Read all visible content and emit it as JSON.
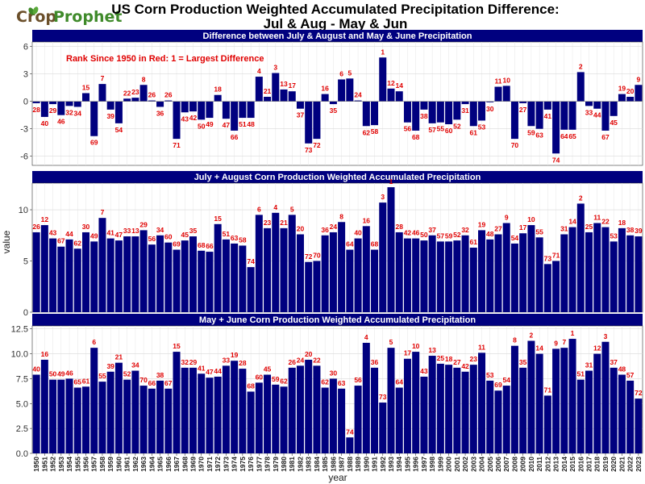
{
  "logo": {
    "part1": "Crop",
    "part2": "Prophet"
  },
  "title_line1": "US Corn Production Weighted Accumulated Precipitation Difference:",
  "title_line2": "Jul & Aug - May & Jun",
  "xlabel": "year",
  "ylabel": "value",
  "annotation": "Rank Since 1950 in Red:   1 = Largest Difference",
  "colors": {
    "bar": "#00007f",
    "rank": "#e00000",
    "strip": "#00007f",
    "panel_bg": "#ffffff",
    "grid": "#e6e6e6"
  },
  "chart_data": [
    {
      "type": "bar",
      "title": "Difference between July & August and May & June Precipitation",
      "ylim": [
        -7,
        6.5
      ],
      "yticks": [
        -6,
        -3,
        0,
        3,
        6
      ],
      "x": [
        1950,
        1951,
        1952,
        1953,
        1954,
        1955,
        1956,
        1957,
        1958,
        1959,
        1960,
        1961,
        1962,
        1963,
        1964,
        1965,
        1966,
        1967,
        1968,
        1969,
        1970,
        1971,
        1972,
        1973,
        1974,
        1975,
        1976,
        1977,
        1978,
        1979,
        1980,
        1981,
        1982,
        1983,
        1984,
        1985,
        1986,
        1987,
        1988,
        1989,
        1990,
        1991,
        1992,
        1993,
        1994,
        1995,
        1996,
        1997,
        1998,
        1999,
        2000,
        2001,
        2002,
        2003,
        2004,
        2005,
        2006,
        2007,
        2008,
        2009,
        2010,
        2011,
        2012,
        2013,
        2014,
        2015,
        2016,
        2017,
        2018,
        2019,
        2020,
        2021,
        2022,
        2023
      ],
      "values": [
        -0.2,
        -1.7,
        -0.3,
        -1.5,
        -0.5,
        -0.6,
        0.9,
        -3.8,
        1.9,
        -0.9,
        -2.4,
        0.3,
        0.4,
        1.8,
        0.1,
        -0.6,
        0.1,
        -4.1,
        -1.2,
        -1.1,
        -2.0,
        -1.8,
        0.7,
        -1.9,
        -3.2,
        -1.8,
        -1.8,
        2.7,
        0.5,
        3.1,
        1.3,
        1.1,
        -0.8,
        -4.6,
        -4.1,
        0.8,
        -0.3,
        2.4,
        2.5,
        0.1,
        -2.7,
        -2.6,
        4.8,
        1.4,
        1.1,
        -2.3,
        -3.2,
        -0.9,
        -2.4,
        -2.3,
        -2.5,
        -2.0,
        -0.3,
        -2.7,
        -2.1,
        -0.1,
        1.6,
        1.7,
        -4.1,
        -0.2,
        -2.7,
        -3.0,
        -0.9,
        -5.7,
        -3.1,
        -3.1,
        3.2,
        -0.5,
        -0.8,
        -3.2,
        -1.6,
        0.8,
        0.5,
        1.8
      ],
      "ranks": [
        28,
        40,
        29,
        46,
        32,
        34,
        15,
        69,
        7,
        39,
        54,
        22,
        23,
        8,
        26,
        36,
        26,
        71,
        43,
        42,
        50,
        49,
        18,
        47,
        66,
        51,
        48,
        4,
        21,
        3,
        13,
        17,
        37,
        73,
        72,
        16,
        35,
        6,
        5,
        24,
        62,
        58,
        1,
        12,
        14,
        56,
        68,
        38,
        57,
        55,
        60,
        52,
        31,
        61,
        53,
        30,
        11,
        10,
        70,
        27,
        59,
        63,
        41,
        74,
        64,
        65,
        2,
        33,
        44,
        67,
        45,
        19,
        20,
        9
      ]
    },
    {
      "type": "bar",
      "title": "July + August Corn Production Weighted Accumulated Precipitation",
      "ylim": [
        0,
        12.6
      ],
      "yticks": [
        0,
        5,
        10
      ],
      "x": [
        1950,
        1951,
        1952,
        1953,
        1954,
        1955,
        1956,
        1957,
        1958,
        1959,
        1960,
        1961,
        1962,
        1963,
        1964,
        1965,
        1966,
        1967,
        1968,
        1969,
        1970,
        1971,
        1972,
        1973,
        1974,
        1975,
        1976,
        1977,
        1978,
        1979,
        1980,
        1981,
        1982,
        1983,
        1984,
        1985,
        1986,
        1987,
        1988,
        1989,
        1990,
        1991,
        1992,
        1993,
        1994,
        1995,
        1996,
        1997,
        1998,
        1999,
        2000,
        2001,
        2002,
        2003,
        2004,
        2005,
        2006,
        2007,
        2008,
        2009,
        2010,
        2011,
        2012,
        2013,
        2014,
        2015,
        2016,
        2017,
        2018,
        2019,
        2020,
        2021,
        2022,
        2023
      ],
      "values": [
        7.8,
        8.5,
        7.2,
        6.4,
        7.1,
        6.2,
        7.8,
        6.9,
        9.2,
        7.2,
        7.0,
        7.4,
        7.4,
        8.0,
        6.6,
        7.5,
        6.8,
        6.1,
        7.0,
        7.4,
        6.0,
        5.9,
        8.6,
        7.1,
        6.7,
        6.5,
        4.4,
        9.5,
        8.2,
        9.7,
        8.2,
        9.5,
        7.6,
        4.9,
        5.0,
        7.5,
        7.8,
        8.8,
        6.1,
        7.2,
        8.4,
        6.1,
        10.7,
        12.2,
        7.8,
        7.2,
        7.2,
        7.0,
        7.5,
        6.9,
        6.9,
        7.0,
        7.5,
        6.3,
        8.0,
        7.1,
        7.6,
        8.7,
        6.7,
        7.7,
        8.5,
        7.3,
        4.7,
        5.0,
        7.6,
        8.3,
        10.6,
        7.8,
        8.7,
        8.3,
        6.9,
        8.2,
        7.5,
        7.4
      ],
      "ranks": [
        26,
        12,
        43,
        67,
        44,
        62,
        30,
        49,
        7,
        41,
        47,
        33,
        13,
        29,
        56,
        34,
        60,
        69,
        45,
        35,
        68,
        66,
        15,
        51,
        63,
        58,
        74,
        6,
        23,
        4,
        21,
        5,
        20,
        72,
        70,
        36,
        24,
        8,
        64,
        40,
        16,
        68,
        3,
        1,
        28,
        42,
        46,
        50,
        37,
        57,
        59,
        52,
        32,
        61,
        19,
        48,
        27,
        9,
        54,
        17,
        10,
        55,
        73,
        71,
        31,
        14,
        2,
        25,
        11,
        22,
        53,
        18,
        38,
        39
      ]
    },
    {
      "type": "bar",
      "title": "May + June Corn Production Weighted Accumulated Precipitation",
      "ylim": [
        0,
        12.8
      ],
      "yticks": [
        0.0,
        2.5,
        5.0,
        7.5,
        10.0,
        12.5
      ],
      "x": [
        1950,
        1951,
        1952,
        1953,
        1954,
        1955,
        1956,
        1957,
        1958,
        1959,
        1960,
        1961,
        1962,
        1963,
        1964,
        1965,
        1966,
        1967,
        1968,
        1969,
        1970,
        1971,
        1972,
        1973,
        1974,
        1975,
        1976,
        1977,
        1978,
        1979,
        1980,
        1981,
        1982,
        1983,
        1984,
        1985,
        1986,
        1987,
        1988,
        1989,
        1990,
        1991,
        1992,
        1993,
        1994,
        1995,
        1996,
        1997,
        1998,
        1999,
        2000,
        2001,
        2002,
        2003,
        2004,
        2005,
        2006,
        2007,
        2008,
        2009,
        2010,
        2011,
        2012,
        2013,
        2014,
        2015,
        2016,
        2017,
        2018,
        2019,
        2020,
        2021,
        2022,
        2023
      ],
      "values": [
        7.9,
        9.4,
        7.4,
        7.4,
        7.5,
        6.6,
        6.7,
        10.6,
        7.2,
        8.2,
        9.1,
        7.4,
        8.3,
        6.8,
        6.5,
        7.3,
        6.5,
        10.2,
        8.6,
        8.6,
        8.0,
        7.6,
        7.7,
        8.8,
        9.3,
        8.5,
        6.2,
        7.1,
        7.9,
        6.9,
        6.7,
        8.6,
        8.8,
        9.4,
        8.8,
        6.6,
        7.5,
        6.5,
        1.6,
        6.8,
        11.1,
        8.6,
        5.1,
        10.6,
        6.6,
        9.5,
        10.2,
        7.7,
        9.8,
        9.0,
        8.9,
        8.6,
        8.2,
        8.9,
        10.1,
        7.3,
        6.3,
        6.8,
        10.8,
        8.6,
        11.3,
        10.0,
        5.8,
        10.5,
        10.6,
        11.5,
        7.4,
        8.3,
        10.0,
        11.2,
        8.6,
        7.9,
        7.3,
        5.5
      ],
      "ranks": [
        40,
        16,
        50,
        49,
        46,
        65,
        61,
        6,
        55,
        39,
        21,
        52,
        34,
        70,
        66,
        38,
        67,
        15,
        32,
        29,
        41,
        47,
        44,
        33,
        19,
        28,
        68,
        60,
        45,
        59,
        62,
        26,
        24,
        20,
        22,
        62,
        30,
        63,
        74,
        56,
        4,
        36,
        73,
        5,
        64,
        17,
        10,
        43,
        13,
        25,
        18,
        27,
        42,
        23,
        11,
        53,
        69,
        54,
        8,
        35,
        2,
        14,
        71,
        9,
        7,
        1,
        51,
        31,
        12,
        3,
        37,
        48,
        57,
        72
      ]
    }
  ]
}
